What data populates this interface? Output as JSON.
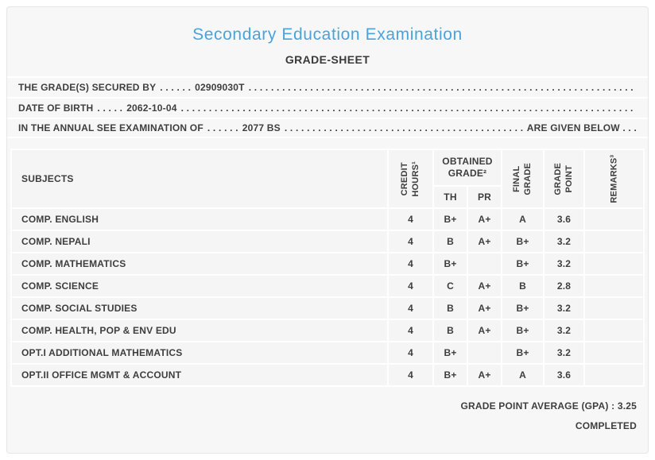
{
  "colors": {
    "accent_blue": "#4aa3db",
    "text": "#3e3e3e",
    "card_bg": "#f7f7f7",
    "cell_bg": "#f5f5f5",
    "separator": "#ffffff"
  },
  "header": {
    "title": "Secondary Education Examination",
    "subtitle": "GRADE-SHEET"
  },
  "info": [
    {
      "label": "THE GRADE(S) SECURED BY",
      "dots": ". . . . . .",
      "value": "02909030T",
      "suffix": ""
    },
    {
      "label": "DATE OF BIRTH",
      "dots": ". . . . .",
      "value": "2062-10-04",
      "suffix": ""
    },
    {
      "label": "IN THE ANNUAL SEE EXAMINATION OF",
      "dots": ". . . . . .",
      "value": "2077 BS",
      "suffix": "ARE GIVEN BELOW . . ."
    }
  ],
  "dot_filler": ". . . . . . . . . . . . . . . . . . . . . . . . . . . . . . . . . . . . . . . . . . . . . . . . . . . . . . . . . . . . . . . . . . . . . . . . . . . . . . . . . . . . . . . . . . . . . . . . . . . . . . . . . . . . . . . . . . . . . . . .",
  "table": {
    "headers": {
      "subjects": "SUBJECTS",
      "credit_lines": [
        "CREDIT",
        "HOURS¹"
      ],
      "obtained_lines": [
        "OBTAINED",
        "GRADE²"
      ],
      "th": "TH",
      "pr": "PR",
      "final_lines": [
        "FINAL",
        "GRADE"
      ],
      "point_lines": [
        "GRADE",
        "POINT"
      ],
      "remarks": "REMARKS³"
    },
    "rows": [
      {
        "subject": "COMP. ENGLISH",
        "credit": "4",
        "th": "B+",
        "pr": "A+",
        "final": "A",
        "point": "3.6",
        "remarks": ""
      },
      {
        "subject": "COMP. NEPALI",
        "credit": "4",
        "th": "B",
        "pr": "A+",
        "final": "B+",
        "point": "3.2",
        "remarks": ""
      },
      {
        "subject": "COMP. MATHEMATICS",
        "credit": "4",
        "th": "B+",
        "pr": "",
        "final": "B+",
        "point": "3.2",
        "remarks": ""
      },
      {
        "subject": "COMP. SCIENCE",
        "credit": "4",
        "th": "C",
        "pr": "A+",
        "final": "B",
        "point": "2.8",
        "remarks": ""
      },
      {
        "subject": "COMP. SOCIAL STUDIES",
        "credit": "4",
        "th": "B",
        "pr": "A+",
        "final": "B+",
        "point": "3.2",
        "remarks": ""
      },
      {
        "subject": "COMP. HEALTH, POP & ENV EDU",
        "credit": "4",
        "th": "B",
        "pr": "A+",
        "final": "B+",
        "point": "3.2",
        "remarks": ""
      },
      {
        "subject": "OPT.I ADDITIONAL MATHEMATICS",
        "credit": "4",
        "th": "B+",
        "pr": "",
        "final": "B+",
        "point": "3.2",
        "remarks": ""
      },
      {
        "subject": "OPT.II OFFICE MGMT & ACCOUNT",
        "credit": "4",
        "th": "B+",
        "pr": "A+",
        "final": "A",
        "point": "3.6",
        "remarks": ""
      }
    ]
  },
  "footer": {
    "gpa_label": "GRADE POINT AVERAGE (GPA) :",
    "gpa_value": "3.25",
    "status": "COMPLETED"
  }
}
